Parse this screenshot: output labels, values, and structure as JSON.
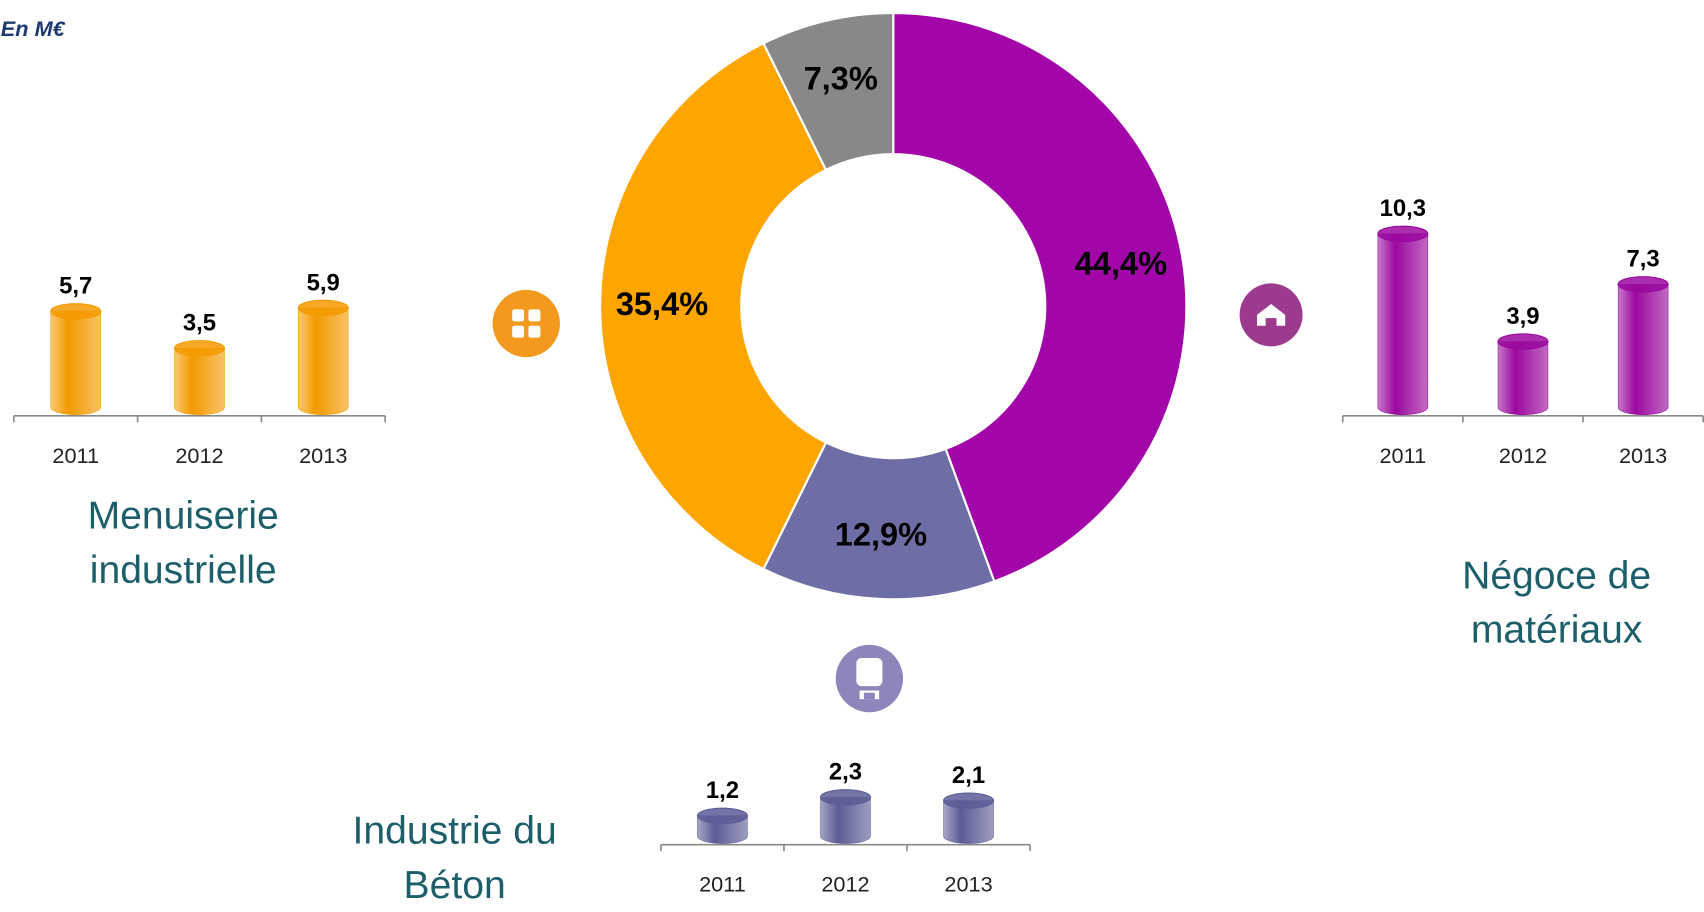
{
  "note": "En M€",
  "chart_data": [
    {
      "type": "donut",
      "values": [
        44.4,
        12.9,
        35.4,
        7.3
      ],
      "value_labels": [
        "44,4%",
        "12,9%",
        "35,4%",
        "7,3%"
      ],
      "colors": [
        "#a205a8",
        "#6e6ea6",
        "#ffa500",
        "#888888"
      ]
    },
    {
      "type": "cylinder",
      "title": "Menuiserie industrielle",
      "categories": [
        "2011",
        "2012",
        "2013"
      ],
      "values": [
        5.7,
        3.5,
        5.9
      ],
      "value_labels": [
        "5,7",
        "3,5",
        "5,9"
      ],
      "color": "#f39a00"
    },
    {
      "type": "cylinder",
      "title": "Industrie du Béton",
      "categories": [
        "2011",
        "2012",
        "2013"
      ],
      "values": [
        1.2,
        2.3,
        2.1
      ],
      "value_labels": [
        "1,2",
        "2,3",
        "2,1"
      ],
      "color": "#5c5c96"
    },
    {
      "type": "cylinder",
      "title": "Négoce de matériaux",
      "categories": [
        "2011",
        "2012",
        "2013"
      ],
      "values": [
        10.3,
        3.9,
        7.3
      ],
      "value_labels": [
        "10,3",
        "3,9",
        "7,3"
      ],
      "color": "#9a089e"
    }
  ]
}
